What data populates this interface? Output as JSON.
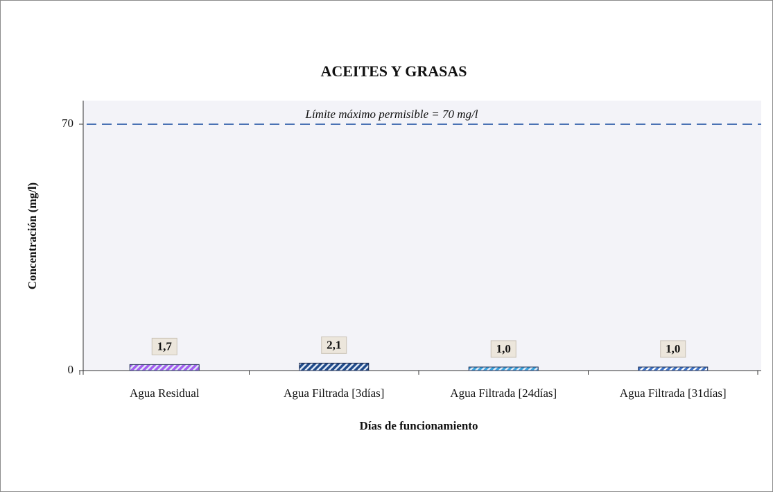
{
  "chart_data": {
    "type": "bar",
    "title": "ACEITES Y GRASAS",
    "x_label": "Días de funcionamiento",
    "y_label": "Concentración  (mg/l)",
    "categories": [
      "Agua Residual",
      "Agua Filtrada [3días]",
      "Agua Filtrada [24días]",
      "Agua Filtrada [31días]"
    ],
    "values": [
      1.7,
      2.1,
      1.0,
      1.0
    ],
    "value_labels": [
      "1,7",
      "2,1",
      "1,0",
      "1,0"
    ],
    "colors": [
      "#a45ef0",
      "#1f4a8a",
      "#3ca2dc",
      "#3f74c8"
    ],
    "ylim": [
      0,
      76.7
    ],
    "yticks": [
      0,
      70
    ],
    "reference_line": {
      "value": 70,
      "label": "Límite máximo permisible = 70 mg/l",
      "color": "#4a72b4"
    }
  }
}
